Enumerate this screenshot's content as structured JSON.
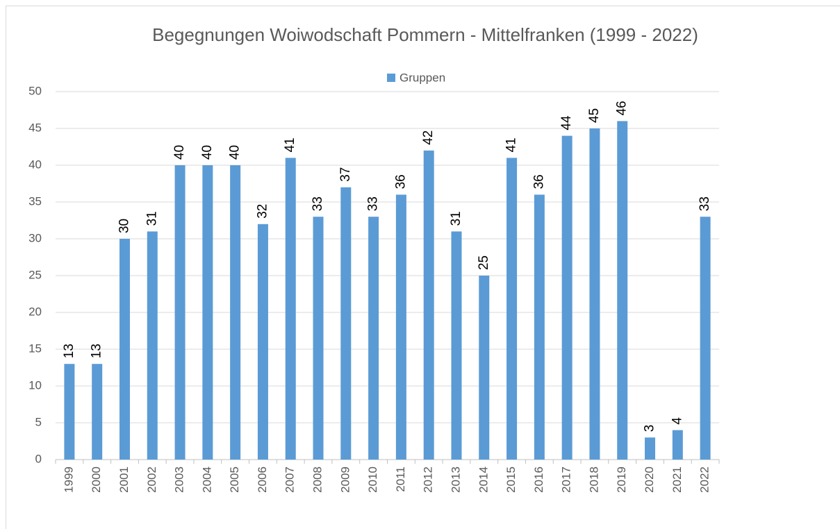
{
  "chart_data": {
    "type": "bar",
    "title": "Begegnungen Woiwodschaft Pommern - Mittelfranken (1999 - 2022)",
    "categories": [
      "1999",
      "2000",
      "2001",
      "2002",
      "2003",
      "2004",
      "2005",
      "2006",
      "2007",
      "2008",
      "2009",
      "2010",
      "2011",
      "2012",
      "2013",
      "2014",
      "2015",
      "2016",
      "2017",
      "2018",
      "2019",
      "2020",
      "2021",
      "2022"
    ],
    "series": [
      {
        "name": "Gruppen",
        "color": "#5b9bd5",
        "values": [
          13,
          13,
          30,
          31,
          40,
          40,
          40,
          32,
          41,
          33,
          37,
          33,
          36,
          42,
          31,
          25,
          41,
          36,
          44,
          45,
          46,
          3,
          4,
          33
        ]
      }
    ],
    "ylim": [
      0,
      50
    ],
    "yticks": [
      0,
      5,
      10,
      15,
      20,
      25,
      30,
      35,
      40,
      45,
      50
    ],
    "grid": true,
    "legend": "top"
  }
}
